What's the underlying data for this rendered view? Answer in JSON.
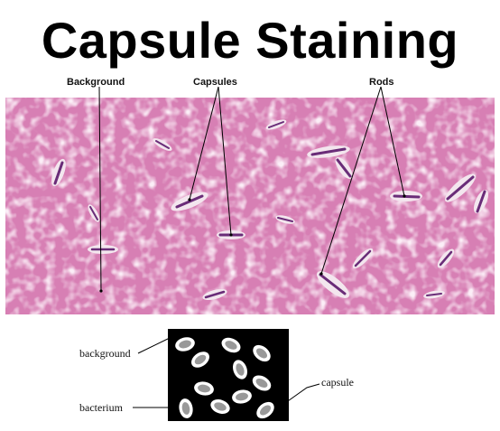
{
  "title": "Capsule Staining",
  "micrograph_labels": {
    "background": "Background",
    "capsules": "Capsules",
    "rods": "Rods"
  },
  "diagram_labels": {
    "background": "background",
    "bacterium": "bacterium",
    "capsule": "capsule"
  },
  "colors": {
    "stain_pink": "#d77fb4",
    "capsule_halo": "#f3e6ee",
    "rod_purple": "#6a2c78",
    "diagram_bg": "#000000",
    "diagram_capsule": "#ffffff",
    "diagram_cell": "#999999"
  }
}
